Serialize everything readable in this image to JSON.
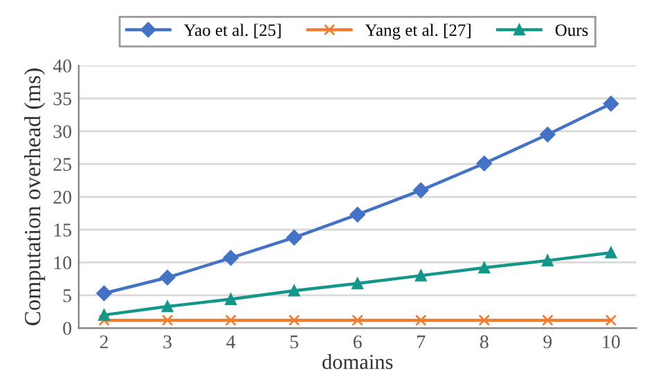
{
  "chart_data": {
    "type": "line",
    "xlabel": "domains",
    "ylabel": "Computation overhead (ms)",
    "categories": [
      "2",
      "3",
      "4",
      "5",
      "6",
      "7",
      "8",
      "9",
      "10"
    ],
    "series": [
      {
        "name": "Yao et al. [25]",
        "color": "#4472c4",
        "marker": "diamond",
        "values": [
          5.3,
          7.7,
          10.7,
          13.8,
          17.3,
          21.0,
          25.1,
          29.5,
          34.2
        ]
      },
      {
        "name": "Yang et al. [27]",
        "color": "#ed7d31",
        "marker": "cross",
        "values": [
          1.2,
          1.2,
          1.2,
          1.2,
          1.2,
          1.2,
          1.2,
          1.2,
          1.2
        ]
      },
      {
        "name": "Ours",
        "color": "#14968a",
        "marker": "triangle",
        "values": [
          2.0,
          3.3,
          4.4,
          5.7,
          6.8,
          8.0,
          9.2,
          10.3,
          11.5
        ]
      }
    ],
    "ylim": [
      0,
      40
    ],
    "yticks": [
      0,
      5,
      10,
      15,
      20,
      25,
      30,
      35,
      40
    ],
    "grid": "y",
    "legend": "top"
  }
}
